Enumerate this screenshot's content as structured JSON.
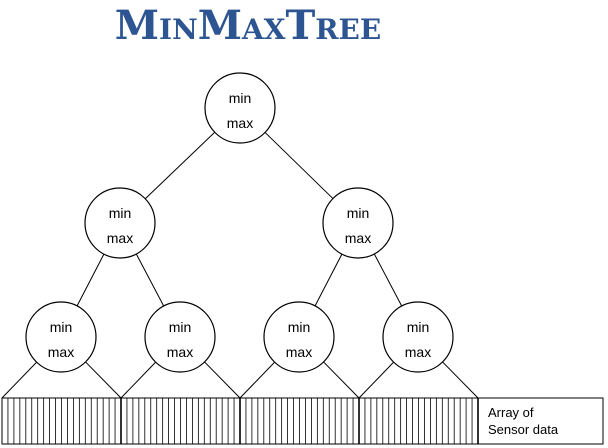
{
  "title": "MinMaxTree",
  "title_color": "#2c5592",
  "node_labels": {
    "top": "min",
    "bottom": "max"
  },
  "tree": {
    "levels": 3,
    "nodes": [
      {
        "id": "root",
        "level": 0
      },
      {
        "id": "l1-left",
        "level": 1
      },
      {
        "id": "l1-right",
        "level": 1
      },
      {
        "id": "l2-1",
        "level": 2
      },
      {
        "id": "l2-2",
        "level": 2
      },
      {
        "id": "l2-3",
        "level": 2
      },
      {
        "id": "l2-4",
        "level": 2
      }
    ]
  },
  "array": {
    "label_line1": "Array of",
    "label_line2": "Sensor data",
    "segments": 4,
    "cells_per_segment": 20
  }
}
